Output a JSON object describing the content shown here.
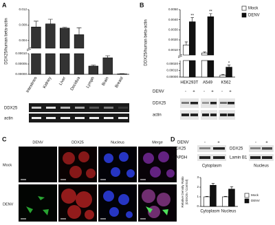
{
  "chart_data": [
    {
      "type": "bar",
      "y_label": "DDX25/human beta-actin",
      "categories": [
        "Intestines",
        "Kidney",
        "Liver",
        "Decidua",
        "Lymph",
        "Brain",
        "Breast"
      ],
      "values": [
        0.0075,
        0.0083,
        0.0072,
        0.0055,
        4e-05,
        8e-05,
        2e-06
      ],
      "errors": [
        0.0015,
        0.0012,
        0.0002,
        0.0018,
        5e-06,
        1e-05,
        1e-06
      ],
      "color": "#333333",
      "segments": [
        {
          "ylim": [
            0.002,
            0.012
          ],
          "yticks": [
            0.004,
            0.008,
            0.012
          ]
        },
        {
          "ylim": [
            0,
            0.0001
          ],
          "yticks": [
            {
              "value": 0,
              "label": "0.00000"
            },
            5e-05,
            {
              "value": 0.0001,
              "label": "0.00010"
            }
          ]
        }
      ]
    },
    {
      "type": "bar",
      "y_label": "DDX25/human beta-actin",
      "categories": [
        "HEK293T",
        "A549",
        "K562"
      ],
      "series": [
        {
          "name": "Mock",
          "color": "#ffffff",
          "values": [
            0.0015,
            0.0007,
            3e-05
          ],
          "errors": [
            0.0003,
            0.0001,
            1e-05
          ]
        },
        {
          "name": "DENV",
          "color": "#111111",
          "values": [
            0.0038,
            0.0043,
            0.00015
          ],
          "errors": [
            0.0004,
            0.0003,
            3e-05
          ],
          "significance": [
            "**",
            "**",
            "*"
          ]
        }
      ],
      "segments": [
        {
          "ylim": [
            0.0005,
            0.005
          ],
          "yticks": [
            {
              "value": 0.001,
              "label": "0.0010"
            },
            {
              "value": 0.002,
              "label": "0.0020"
            },
            {
              "value": 0.003,
              "label": "0.0030"
            },
            {
              "value": 0.004,
              "label": "0.0040"
            },
            {
              "value": 0.005,
              "label": "0.0050"
            }
          ]
        },
        {
          "ylim": [
            0,
            0.00025
          ],
          "yticks": [
            {
              "value": 0,
              "label": "0.00000"
            },
            {
              "value": 0.0001,
              "label": "0.00010"
            },
            {
              "value": 0.0002,
              "label": "0.00020"
            }
          ]
        }
      ]
    },
    {
      "type": "bar",
      "y_label": [
        "Relative Density Ratio",
        "(DDX25 / Control)"
      ],
      "categories": [
        "Cytoplasm",
        "Nucleus"
      ],
      "series": [
        {
          "name": "Mock",
          "color": "#ffffff",
          "values": [
            1,
            1
          ],
          "errors": [
            0.05,
            0.05
          ]
        },
        {
          "name": "DENV",
          "color": "#111111",
          "values": [
            2.2,
            1.8
          ],
          "errors": [
            0.2,
            0.25
          ]
        }
      ],
      "segments": [
        {
          "ylim": [
            0,
            3
          ],
          "yticks": [
            0,
            1,
            2,
            3
          ]
        }
      ]
    }
  ],
  "panel_labels": [
    "A",
    "B",
    "C",
    "D"
  ],
  "panel_a": {
    "blot_labels": [
      "DDX25",
      "actin"
    ]
  },
  "panel_b": {
    "treatment": "DENV",
    "marks": [
      "-",
      "+",
      "-",
      "+",
      "-",
      "+"
    ],
    "blot_labels": [
      "DDX25",
      "actin"
    ]
  },
  "panel_c": {
    "columns": [
      "DENV",
      "DDX25",
      "Nucleus",
      "Merge"
    ],
    "rows": [
      "Mock",
      "DENV"
    ]
  },
  "panel_d": {
    "treatment": "DENV",
    "marks": [
      "-",
      "+",
      "-",
      "+"
    ],
    "blot_left": [
      "DDX25",
      "GAPDH"
    ],
    "fraction_left": "Cytoplasm",
    "blot_right": [
      "DDX25",
      "Lamin B1"
    ],
    "fraction_right": "Nucleus"
  }
}
